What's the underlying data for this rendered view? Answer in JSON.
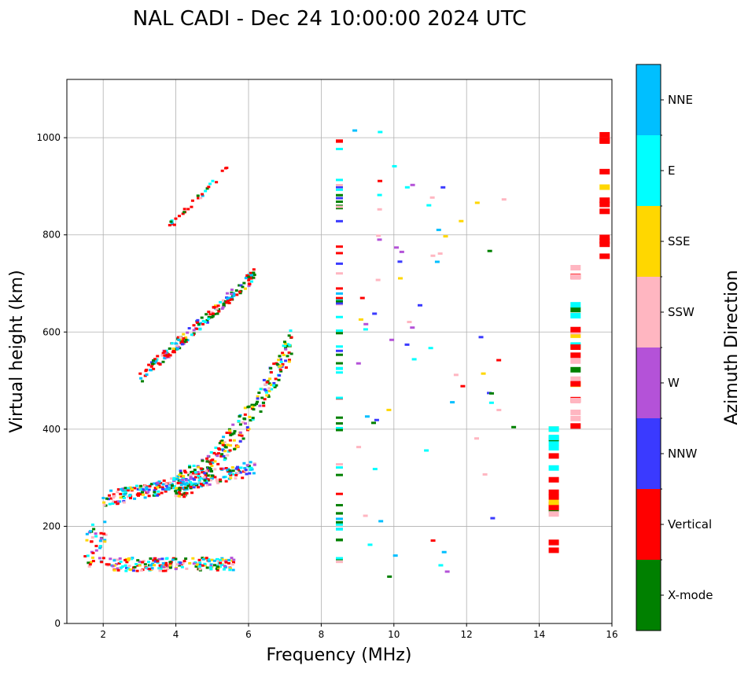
{
  "chart_data": {
    "type": "scatter",
    "title": "NAL CADI - Dec 24 10:00:00 2024 UTC",
    "xlabel": "Frequency (MHz)",
    "ylabel": "Virtual height (km)",
    "xlim": [
      1,
      16
    ],
    "ylim": [
      0,
      1120
    ],
    "xticks": [
      2,
      4,
      6,
      8,
      10,
      12,
      14,
      16
    ],
    "yticks": [
      0,
      200,
      400,
      600,
      800,
      1000
    ],
    "grid": true,
    "colorbar": {
      "label": "Azimuth Direction",
      "categories": [
        {
          "name": "X-mode",
          "color": "#008000"
        },
        {
          "name": "Vertical",
          "color": "#ff0000"
        },
        {
          "name": "NNW",
          "color": "#3a3aff"
        },
        {
          "name": "W",
          "color": "#b452d8"
        },
        {
          "name": "SSW",
          "color": "#ffb6c1"
        },
        {
          "name": "SSE",
          "color": "#ffd700"
        },
        {
          "name": "E",
          "color": "#00ffff"
        },
        {
          "name": "NNE",
          "color": "#00bfff"
        }
      ]
    },
    "traces": [
      {
        "name": "E-layer echoes",
        "f": [
          1.5,
          5.6
        ],
        "h_start": 108,
        "h_end": 135
      },
      {
        "name": "F-layer ordinary trace",
        "f": [
          2.0,
          6.2
        ],
        "h_start": 255,
        "h_end": 320
      },
      {
        "name": "F-layer cusp rise",
        "f": [
          4.0,
          7.2
        ],
        "h_start": 285,
        "h_end": 580
      },
      {
        "name": "F2 upper trace",
        "f": [
          3.0,
          6.2
        ],
        "h_start": 505,
        "h_end": 720
      },
      {
        "name": "High echoes",
        "f": [
          3.8,
          5.5
        ],
        "h_start": 815,
        "h_end": 945
      }
    ],
    "columns": [
      {
        "f": 8.5,
        "h_from": 115,
        "h_to": 1015
      },
      {
        "f": 14.4,
        "h_from": 105,
        "h_to": 415
      },
      {
        "f": 15.0,
        "h_from": 405,
        "h_to": 740
      },
      {
        "f": 15.8,
        "h_from": 755,
        "h_to": 1008
      }
    ]
  }
}
